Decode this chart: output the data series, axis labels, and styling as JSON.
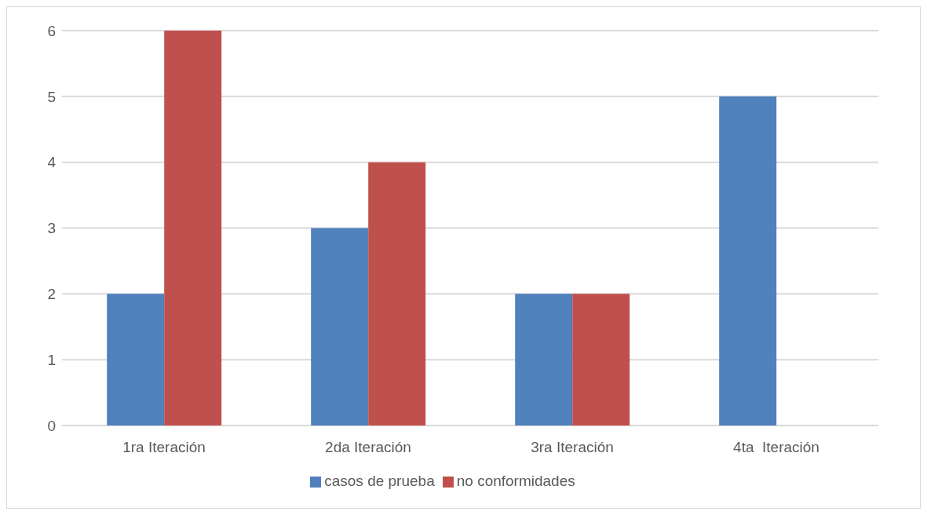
{
  "chart_data": {
    "type": "bar",
    "categories": [
      "1ra Iteración",
      "2da Iteración",
      "3ra Iteración",
      "4ta  Iteración"
    ],
    "series": [
      {
        "name": "casos de prueba",
        "color": "#4f81bd",
        "values": [
          2,
          3,
          2,
          5
        ]
      },
      {
        "name": "no conformidades",
        "color": "#c0504d",
        "values": [
          6,
          4,
          2,
          0
        ]
      }
    ],
    "ylim": [
      0,
      6
    ],
    "yticks": [
      0,
      1,
      2,
      3,
      4,
      5,
      6
    ],
    "grid": "y",
    "legend": "bottom"
  }
}
